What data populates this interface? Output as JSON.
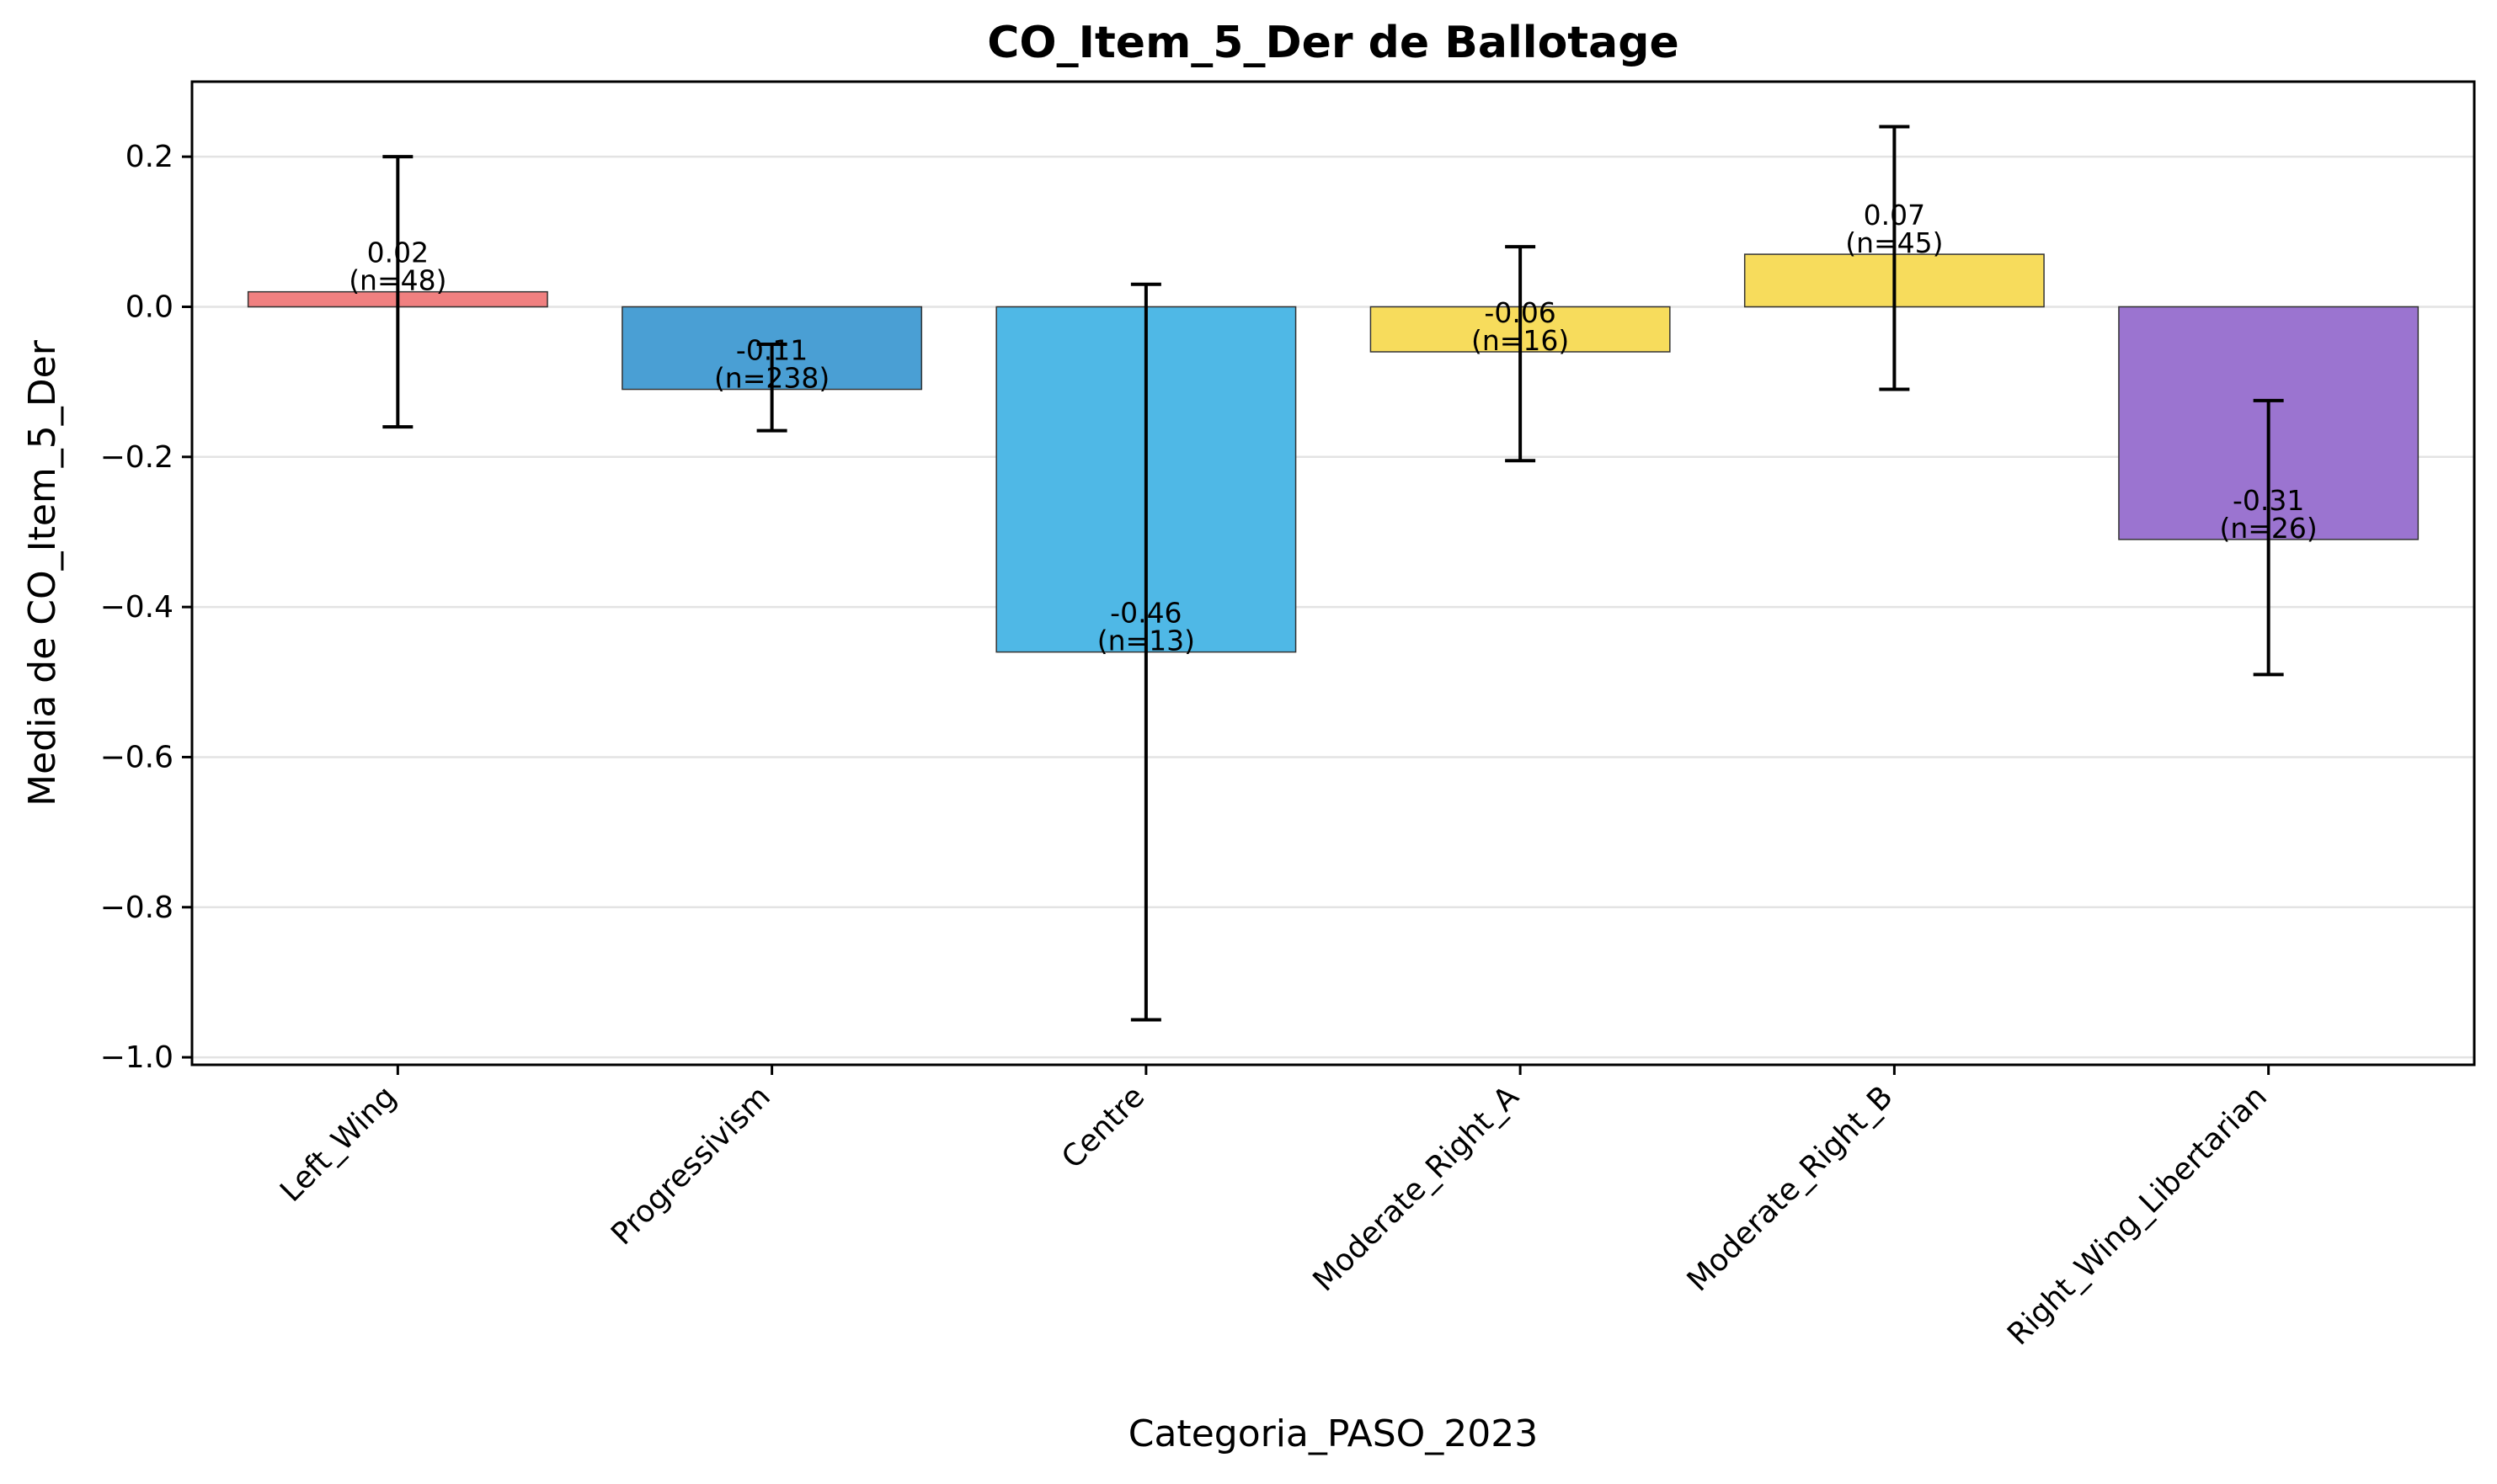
{
  "chart_data": {
    "type": "bar",
    "title": "CO_Item_5_Der de Ballotage",
    "xlabel": "Categoria_PASO_2023",
    "ylabel": "Media de CO_Item_5_Der",
    "ylim": [
      -1.01,
      0.3
    ],
    "yticks": [
      0.2,
      0.0,
      -0.2,
      -0.4,
      -0.6,
      -0.8,
      -1.0
    ],
    "ytick_labels": [
      "0.2",
      "0.0",
      "−0.2",
      "−0.4",
      "−0.6",
      "−0.8",
      "−1.0"
    ],
    "grid": "horizontal",
    "categories": [
      "Left_Wing",
      "Progressivism",
      "Centre",
      "Moderate_Right_A",
      "Moderate_Right_B",
      "Right_Wing_Libertarian"
    ],
    "values": [
      0.02,
      -0.11,
      -0.46,
      -0.06,
      0.07,
      -0.31
    ],
    "error_low": [
      -0.16,
      -0.165,
      -0.95,
      -0.205,
      -0.11,
      -0.49
    ],
    "error_high": [
      0.2,
      -0.05,
      0.03,
      0.08,
      0.24,
      -0.125
    ],
    "value_labels": [
      "0.02",
      "-0.11",
      "-0.46",
      "-0.06",
      "0.07",
      "-0.31"
    ],
    "count_labels": [
      "(n=48)",
      "(n=238)",
      "(n=13)",
      "(n=16)",
      "(n=45)",
      "(n=26)"
    ],
    "colors": [
      "#f08080",
      "#4a9fd4",
      "#4fb8e6",
      "#f7dc5c",
      "#f7dc5c",
      "#9b74d0"
    ]
  }
}
